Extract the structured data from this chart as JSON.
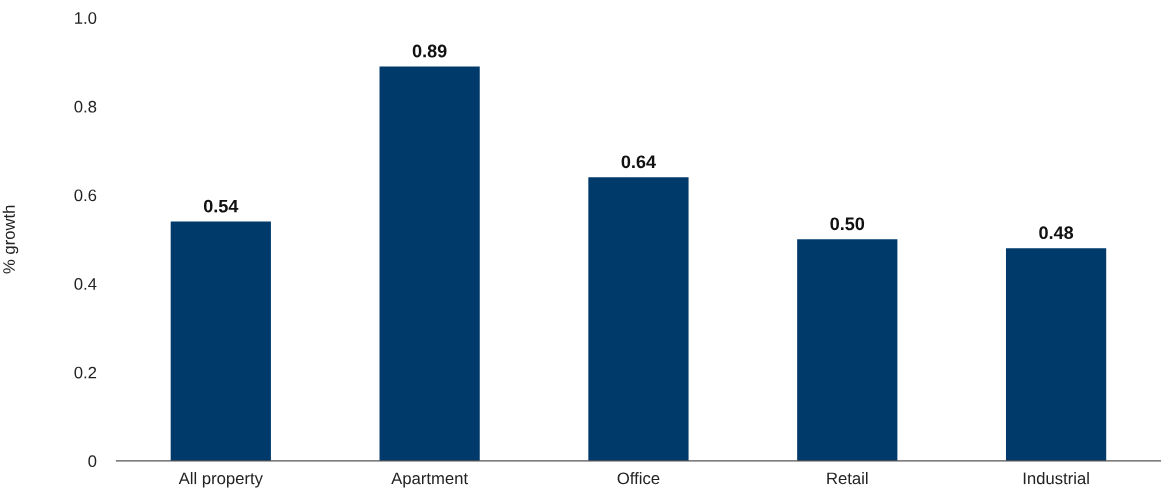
{
  "chart_data": {
    "type": "bar",
    "ylabel": "% growth",
    "categories": [
      "All property",
      "Apartment",
      "Office",
      "Retail",
      "Industrial"
    ],
    "values": [
      0.54,
      0.89,
      0.64,
      0.5,
      0.48
    ],
    "value_labels": [
      "0.54",
      "0.89",
      "0.64",
      "0.50",
      "0.48"
    ],
    "color": "#003a6b",
    "ylim": [
      0,
      1.0
    ],
    "yticks": [
      0,
      0.2,
      0.4,
      0.6,
      0.8,
      {
        "value": 1.0,
        "label": "1.0"
      }
    ],
    "grid": false,
    "legend": false
  }
}
